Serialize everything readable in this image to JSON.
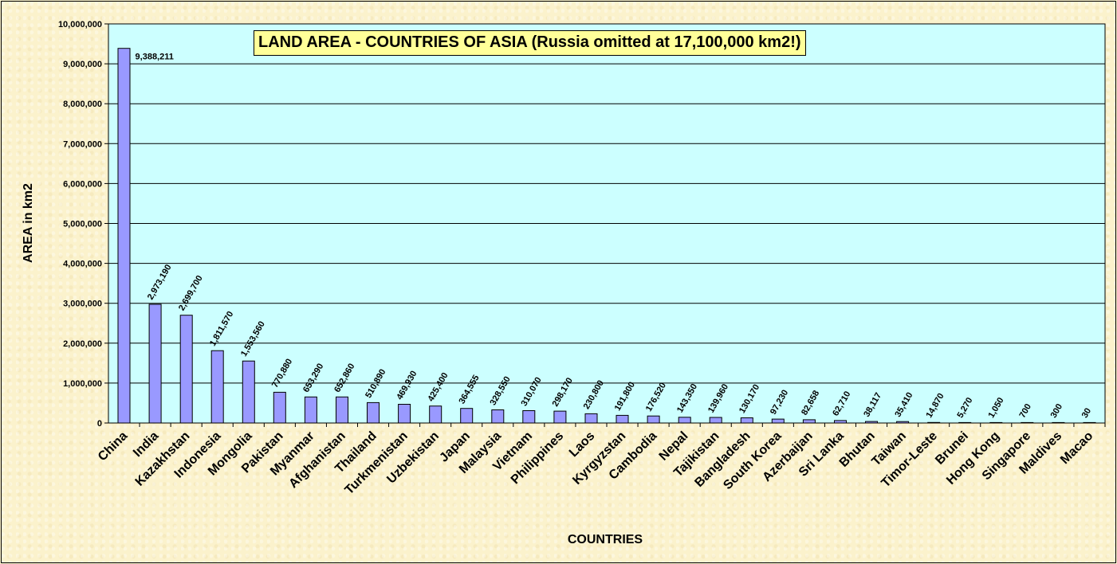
{
  "chart_data": {
    "type": "bar",
    "title": "LAND AREA - COUNTRIES OF ASIA (Russia omitted at 17,100,000 km2!)",
    "xlabel": "COUNTRIES",
    "ylabel": "AREA in km2",
    "ylim": [
      0,
      10000000
    ],
    "yticks": [
      "0",
      "1,000,000",
      "2,000,000",
      "3,000,000",
      "4,000,000",
      "5,000,000",
      "6,000,000",
      "7,000,000",
      "8,000,000",
      "9,000,000",
      "10,000,000"
    ],
    "grid": true,
    "legend": "none",
    "plot_background": "#ccffff",
    "bar_color": "#9999ff",
    "categories": [
      "China",
      "India",
      "Kazakhstan",
      "Indonesia",
      "Mongolia",
      "Pakistan",
      "Myanmar",
      "Afghanistan",
      "Thailand",
      "Turkmenistan",
      "Uzbekistan",
      "Japan",
      "Malaysia",
      "Vietnam",
      "Philippines",
      "Laos",
      "Kyrgyzstan",
      "Cambodia",
      "Nepal",
      "Tajikistan",
      "Bangladesh",
      "South Korea",
      "Azerbaijan",
      "Sri Lanka",
      "Bhutan",
      "Taiwan",
      "Timor-Leste",
      "Brunei",
      "Hong Kong",
      "Singapore",
      "Maldives",
      "Macao"
    ],
    "values": [
      9388211,
      2973190,
      2699700,
      1811570,
      1553560,
      770880,
      653290,
      652860,
      510890,
      469930,
      425400,
      364555,
      328550,
      310070,
      298170,
      230800,
      191800,
      176520,
      143350,
      139960,
      130170,
      97230,
      82658,
      62710,
      38117,
      35410,
      14870,
      5270,
      1050,
      700,
      300,
      30
    ],
    "data_labels": [
      "9,388,211",
      "2,973,190",
      "2,699,700",
      "1,811,570",
      "1,553,560",
      "770,880",
      "653,290",
      "652,860",
      "510,890",
      "469,930",
      "425,400",
      "364,555",
      "328,550",
      "310,070",
      "298,170",
      "230,800",
      "191,800",
      "176,520",
      "143,350",
      "139,960",
      "130,170",
      "97,230",
      "82,658",
      "62,710",
      "38,117",
      "35,410",
      "14,870",
      "5,270",
      "1,050",
      "700",
      "300",
      "30"
    ]
  }
}
